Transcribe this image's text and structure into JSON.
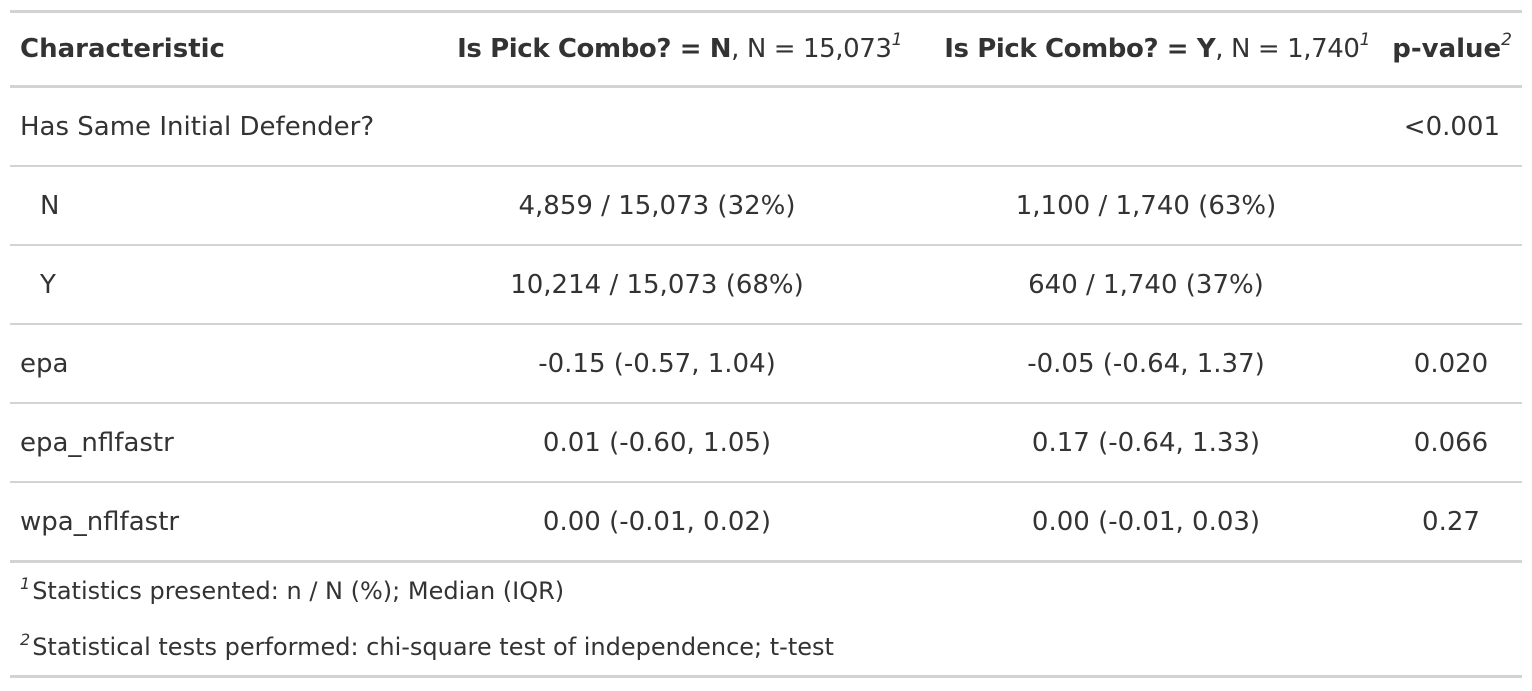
{
  "header": {
    "characteristic": "Characteristic",
    "col_n_bold": "Is Pick Combo? = N",
    "col_n_rest": ", N = 15,073",
    "col_n_sup": "1",
    "col_y_bold": "Is Pick Combo? = Y",
    "col_y_rest": ", N = 1,740",
    "col_y_sup": "1",
    "pvalue": "p-value",
    "pvalue_sup": "2"
  },
  "rows": [
    {
      "label": "Has Same Initial Defender?",
      "n": "",
      "y": "",
      "p": "<0.001"
    },
    {
      "label": "N",
      "n": "4,859 / 15,073 (32%)",
      "y": "1,100 / 1,740 (63%)",
      "p": ""
    },
    {
      "label": "Y",
      "n": "10,214 / 15,073 (68%)",
      "y": "640 / 1,740 (37%)",
      "p": ""
    },
    {
      "label": "epa",
      "n": "-0.15 (-0.57, 1.04)",
      "y": "-0.05 (-0.64, 1.37)",
      "p": "0.020"
    },
    {
      "label": "epa_nflfastr",
      "n": "0.01 (-0.60, 1.05)",
      "y": "0.17 (-0.64, 1.33)",
      "p": "0.066"
    },
    {
      "label": "wpa_nflfastr",
      "n": "0.00 (-0.01, 0.02)",
      "y": "0.00 (-0.01, 0.03)",
      "p": "0.27"
    }
  ],
  "footnotes": [
    {
      "mark": "1",
      "text": "Statistics presented: n / N (%); Median (IQR)"
    },
    {
      "mark": "2",
      "text": "Statistical tests performed: chi-square test of independence; t-test"
    }
  ]
}
